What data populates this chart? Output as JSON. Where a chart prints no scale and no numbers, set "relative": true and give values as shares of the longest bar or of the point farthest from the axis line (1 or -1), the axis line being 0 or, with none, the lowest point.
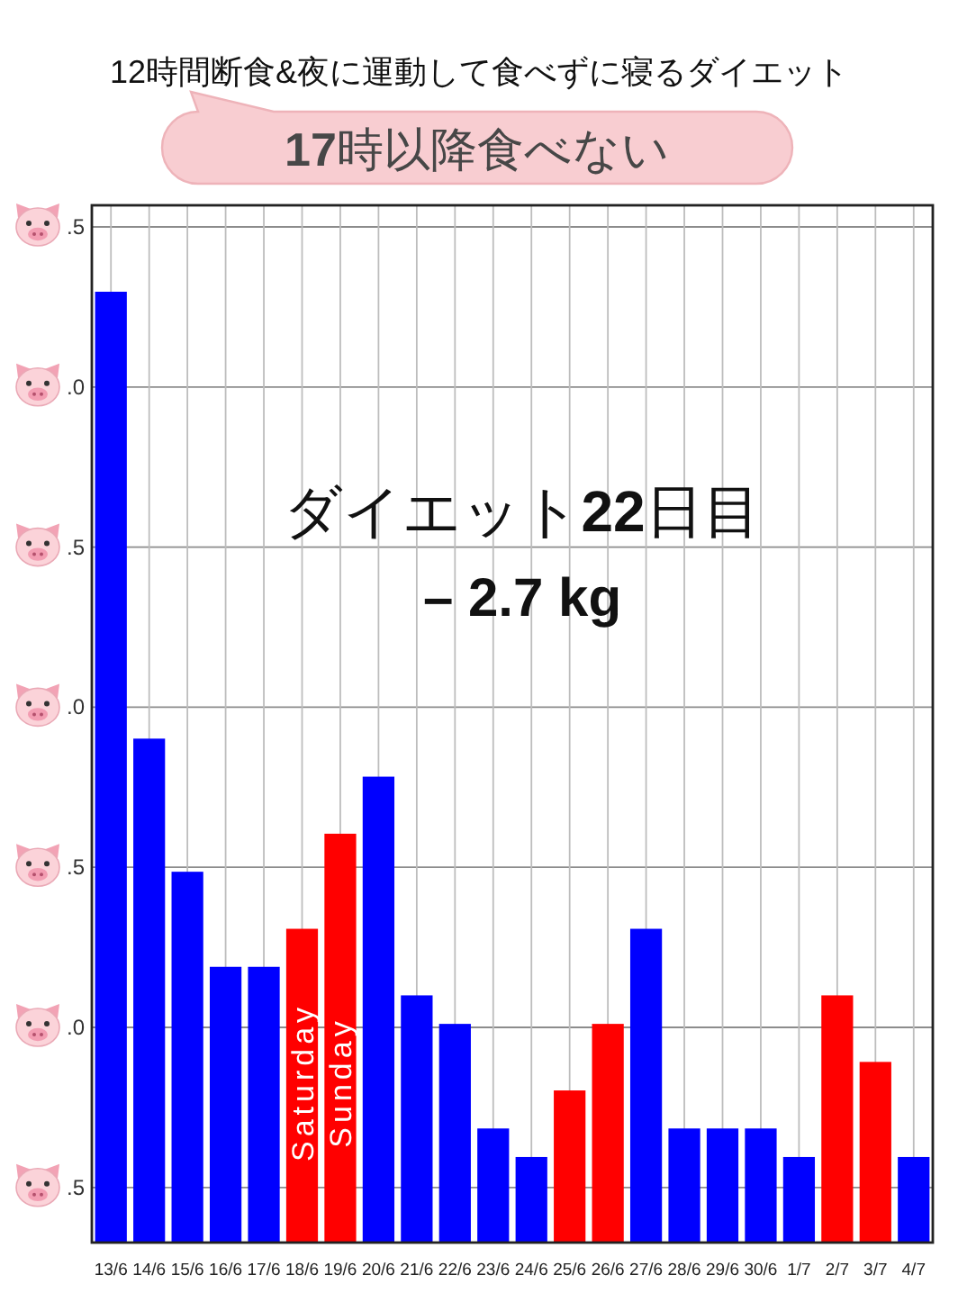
{
  "chart_data": {
    "type": "bar",
    "relative": true,
    "title": "12時間断食&夜に運動して食べずに寝るダイエット",
    "subtitle": "**17**時以降食べない",
    "categories": [
      "13/6",
      "14/6",
      "15/6",
      "16/6",
      "17/6",
      "18/6",
      "19/6",
      "20/6",
      "21/6",
      "22/6",
      "23/6",
      "24/6",
      "25/6",
      "26/6",
      "27/6",
      "28/6",
      "29/6",
      "30/6",
      "1/7",
      "2/7",
      "3/7",
      "4/7"
    ],
    "values": [
      1,
      0.53,
      0.39,
      0.29,
      0.29,
      0.33,
      0.43,
      0.49,
      0.26,
      0.23,
      0.12,
      0.09,
      0.16,
      0.23,
      0.33,
      0.12,
      0.12,
      0.12,
      0.09,
      0.26,
      0.19,
      0.09
    ],
    "colors": [
      "#0000ff",
      "#0000ff",
      "#0000ff",
      "#0000ff",
      "#0000ff",
      "#ff0000",
      "#ff0000",
      "#0000ff",
      "#0000ff",
      "#0000ff",
      "#0000ff",
      "#0000ff",
      "#ff0000",
      "#ff0000",
      "#0000ff",
      "#0000ff",
      "#0000ff",
      "#0000ff",
      "#0000ff",
      "#ff0000",
      "#ff0000",
      "#0000ff"
    ],
    "grid": true,
    "annotations": [
      "ダイエット**22**日目",
      "– 2.7 kg",
      "Saturday",
      "Sunday",
      ".5",
      ".0",
      ".5",
      ".0",
      ".5",
      ".0",
      ".5"
    ]
  }
}
